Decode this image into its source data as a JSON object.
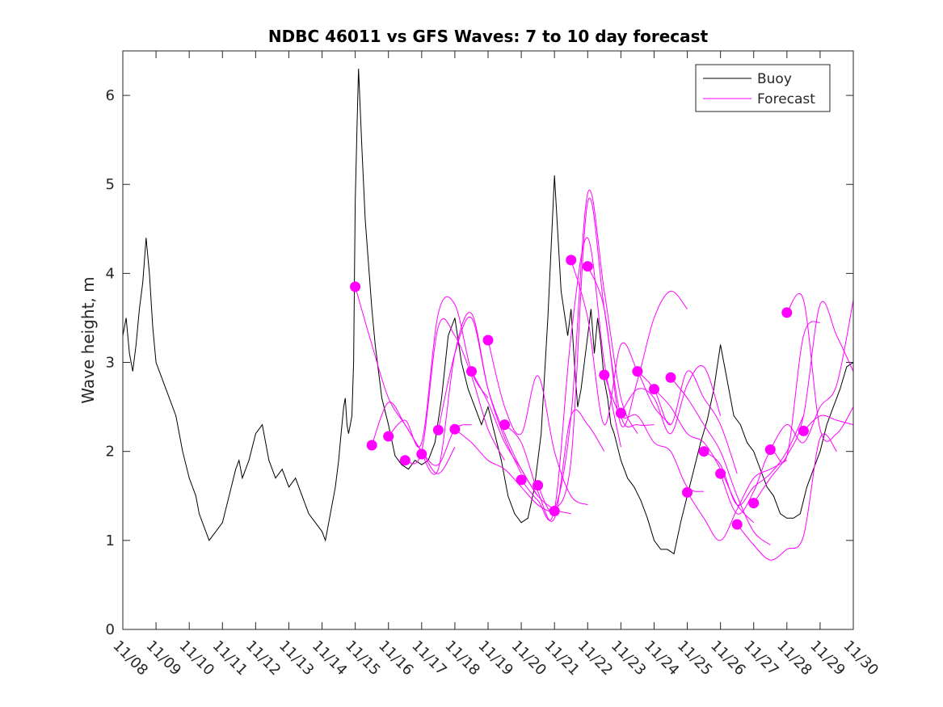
{
  "chart_data": {
    "type": "line",
    "title": "NDBC 46011 vs GFS Waves: 7 to 10 day forecast",
    "xlabel": "",
    "ylabel": "Wave height, m",
    "x_unit": "days since 11/08",
    "xlim": [
      0,
      22
    ],
    "ylim": [
      0,
      6.5
    ],
    "x_ticks": [
      0,
      1,
      2,
      3,
      4,
      5,
      6,
      7,
      8,
      9,
      10,
      11,
      12,
      13,
      14,
      15,
      16,
      17,
      18,
      19,
      20,
      21,
      22
    ],
    "x_tick_labels": [
      "11/08",
      "11/09",
      "11/10",
      "11/11",
      "11/12",
      "11/13",
      "11/14",
      "11/15",
      "11/16",
      "11/17",
      "11/18",
      "11/19",
      "11/20",
      "11/21",
      "11/22",
      "11/23",
      "11/24",
      "11/25",
      "11/26",
      "11/27",
      "11/28",
      "11/29",
      "11/30"
    ],
    "y_ticks": [
      0,
      1,
      2,
      3,
      4,
      5,
      6
    ],
    "y_tick_labels": [
      "0",
      "1",
      "2",
      "3",
      "4",
      "5",
      "6"
    ],
    "colors": {
      "buoy": "#000000",
      "forecast": "#ff00ff",
      "axes": "#262626"
    },
    "legend": {
      "position": "top-right",
      "entries": [
        {
          "label": "Buoy",
          "color": "#000000"
        },
        {
          "label": "Forecast",
          "color": "#ff00ff"
        }
      ]
    },
    "series": [
      {
        "name": "Buoy",
        "color": "#000000",
        "x": [
          0,
          0.1,
          0.2,
          0.3,
          0.4,
          0.5,
          0.6,
          0.7,
          0.8,
          0.9,
          1.0,
          1.2,
          1.4,
          1.6,
          1.8,
          2.0,
          2.1,
          2.2,
          2.3,
          2.4,
          2.5,
          2.6,
          2.8,
          3.0,
          3.2,
          3.4,
          3.5,
          3.6,
          3.8,
          4.0,
          4.2,
          4.4,
          4.6,
          4.8,
          5.0,
          5.2,
          5.4,
          5.6,
          5.8,
          6.0,
          6.1,
          6.2,
          6.3,
          6.4,
          6.5,
          6.55,
          6.6,
          6.65,
          6.7,
          6.75,
          6.8,
          6.85,
          6.9,
          6.95,
          7.0,
          7.05,
          7.1,
          7.2,
          7.3,
          7.4,
          7.5,
          7.6,
          7.7,
          7.8,
          8.0,
          8.2,
          8.4,
          8.6,
          8.8,
          9.0,
          9.2,
          9.4,
          9.6,
          9.8,
          10.0,
          10.2,
          10.4,
          10.6,
          10.8,
          11.0,
          11.2,
          11.4,
          11.6,
          11.8,
          12.0,
          12.2,
          12.4,
          12.6,
          12.8,
          13.0,
          13.2,
          13.4,
          13.5,
          13.6,
          13.7,
          13.8,
          13.9,
          14.0,
          14.1,
          14.2,
          14.3,
          14.4,
          14.5,
          14.6,
          14.7,
          14.8,
          15.0,
          15.2,
          15.4,
          15.6,
          15.8,
          16.0,
          16.2,
          16.4,
          16.6,
          16.8,
          17.0,
          17.2,
          17.4,
          17.6,
          17.8,
          18.0,
          18.2,
          18.4,
          18.6,
          18.8,
          19.0,
          19.2,
          19.4,
          19.6,
          19.8,
          20.0,
          20.2,
          20.4,
          20.6,
          20.8,
          21.0,
          21.2,
          21.4,
          21.6,
          21.8,
          22.0
        ],
        "y": [
          3.3,
          3.5,
          3.1,
          2.9,
          3.2,
          3.6,
          3.9,
          4.4,
          4.0,
          3.4,
          3.0,
          2.8,
          2.6,
          2.4,
          2.0,
          1.7,
          1.6,
          1.5,
          1.3,
          1.2,
          1.1,
          1.0,
          1.1,
          1.2,
          1.5,
          1.8,
          1.9,
          1.7,
          1.9,
          2.2,
          2.3,
          1.9,
          1.7,
          1.8,
          1.6,
          1.7,
          1.5,
          1.3,
          1.2,
          1.1,
          1.0,
          1.2,
          1.4,
          1.6,
          1.9,
          2.1,
          2.3,
          2.5,
          2.6,
          2.3,
          2.2,
          2.3,
          2.4,
          3.0,
          4.8,
          5.6,
          6.3,
          5.4,
          4.6,
          4.1,
          3.6,
          3.2,
          2.9,
          2.6,
          2.3,
          1.95,
          1.85,
          1.8,
          1.9,
          1.85,
          1.9,
          2.1,
          2.6,
          3.3,
          3.5,
          3.0,
          2.7,
          2.5,
          2.3,
          2.5,
          2.2,
          1.9,
          1.5,
          1.3,
          1.2,
          1.25,
          1.6,
          2.2,
          3.5,
          5.1,
          3.8,
          3.3,
          3.6,
          3.0,
          2.5,
          2.7,
          3.0,
          3.3,
          3.6,
          3.1,
          3.5,
          3.2,
          2.8,
          2.6,
          2.3,
          2.2,
          1.9,
          1.7,
          1.6,
          1.45,
          1.25,
          1.0,
          0.9,
          0.9,
          0.85,
          1.2,
          1.5,
          1.8,
          2.1,
          2.35,
          2.7,
          3.2,
          2.8,
          2.4,
          2.3,
          2.1,
          2.0,
          1.8,
          1.6,
          1.5,
          1.3,
          1.25,
          1.25,
          1.3,
          1.6,
          1.8,
          2.0,
          2.3,
          2.5,
          2.7,
          2.95,
          3.0
        ]
      },
      {
        "name": "Forecast",
        "color": "#ff00ff",
        "runs": [
          {
            "x": [
              7.0,
              7.5,
              8.0,
              8.5,
              9.0,
              9.5,
              10.0
            ],
            "y": [
              3.85,
              3.2,
              2.6,
              2.3,
              2.0,
              1.75,
              2.05
            ]
          },
          {
            "x": [
              7.5,
              8.0,
              8.5,
              9.0,
              9.5,
              10.0,
              10.5
            ],
            "y": [
              2.07,
              2.55,
              2.3,
              2.0,
              1.85,
              2.25,
              2.3
            ]
          },
          {
            "x": [
              8.0,
              8.5,
              9.0,
              9.5,
              10.0,
              10.5,
              11.0
            ],
            "y": [
              2.17,
              2.35,
              2.1,
              3.55,
              3.65,
              2.9,
              2.6
            ]
          },
          {
            "x": [
              8.5,
              9.0,
              9.5,
              10.0,
              10.5,
              11.0,
              11.5
            ],
            "y": [
              1.9,
              2.0,
              3.4,
              3.3,
              2.85,
              2.25,
              1.9
            ]
          },
          {
            "x": [
              9.0,
              9.5,
              10.0,
              10.5,
              11.0,
              11.5,
              12.0
            ],
            "y": [
              1.97,
              1.8,
              3.1,
              3.55,
              2.7,
              2.15,
              1.75
            ]
          },
          {
            "x": [
              9.5,
              10.0,
              10.5,
              11.0,
              11.5,
              12.0,
              12.5
            ],
            "y": [
              2.24,
              3.1,
              3.5,
              2.7,
              2.2,
              1.8,
              1.5
            ]
          },
          {
            "x": [
              10.0,
              10.5,
              11.0,
              11.5,
              12.0,
              12.5,
              13.0
            ],
            "y": [
              2.25,
              2.1,
              1.9,
              1.8,
              1.6,
              1.4,
              1.3
            ]
          },
          {
            "x": [
              10.5,
              11.0,
              11.5,
              12.0,
              12.5,
              13.0,
              13.5
            ],
            "y": [
              2.9,
              2.55,
              2.1,
              1.8,
              1.5,
              1.35,
              1.3
            ]
          },
          {
            "x": [
              11.0,
              11.5,
              12.0,
              12.5,
              13.0,
              13.5,
              14.0
            ],
            "y": [
              3.25,
              2.5,
              2.2,
              2.85,
              2.0,
              1.5,
              1.4
            ]
          },
          {
            "x": [
              11.5,
              12.0,
              12.5,
              13.0,
              13.5,
              14.0,
              14.5
            ],
            "y": [
              2.3,
              2.1,
              1.55,
              1.25,
              2.4,
              2.3,
              2.0
            ]
          },
          {
            "x": [
              12.0,
              12.5,
              13.0,
              13.5,
              14.0,
              14.5,
              15.0
            ],
            "y": [
              1.68,
              1.45,
              1.35,
              3.3,
              4.4,
              3.0,
              2.05
            ]
          },
          {
            "x": [
              12.5,
              13.0,
              13.5,
              14.0,
              14.5,
              15.0,
              15.5
            ],
            "y": [
              1.62,
              1.35,
              2.4,
              4.9,
              3.8,
              2.6,
              2.2
            ]
          },
          {
            "x": [
              13.0,
              13.5,
              14.0,
              14.5,
              15.0,
              15.5,
              16.0
            ],
            "y": [
              1.33,
              1.9,
              4.8,
              3.6,
              2.4,
              2.3,
              2.3
            ]
          },
          {
            "x": [
              13.5,
              14.0,
              14.5,
              15.0,
              15.5,
              16.0,
              16.5
            ],
            "y": [
              4.15,
              3.5,
              2.3,
              3.2,
              2.9,
              2.5,
              2.3
            ]
          },
          {
            "x": [
              14.0,
              14.5,
              15.0,
              15.5,
              16.0,
              16.5,
              17.0
            ],
            "y": [
              4.08,
              3.6,
              2.3,
              2.8,
              3.5,
              3.8,
              3.6
            ]
          },
          {
            "x": [
              14.5,
              15.0,
              15.5,
              16.0,
              16.5,
              17.0,
              17.5
            ],
            "y": [
              2.86,
              2.4,
              2.4,
              2.1,
              2.0,
              1.6,
              1.55
            ]
          },
          {
            "x": [
              15.0,
              15.5,
              16.0,
              16.5,
              17.0,
              17.5,
              18.0
            ],
            "y": [
              2.43,
              2.7,
              2.6,
              2.2,
              2.75,
              2.95,
              2.4
            ]
          },
          {
            "x": [
              15.5,
              16.0,
              16.5,
              17.0,
              17.5,
              18.0,
              18.5
            ],
            "y": [
              2.9,
              2.7,
              2.3,
              2.9,
              2.6,
              2.3,
              1.75
            ]
          },
          {
            "x": [
              16.0,
              16.5,
              17.0,
              17.5,
              18.0,
              18.5,
              19.0
            ],
            "y": [
              2.7,
              2.5,
              2.2,
              2.1,
              1.8,
              1.4,
              1.2
            ]
          },
          {
            "x": [
              16.5,
              17.0,
              17.5,
              18.0,
              18.5,
              19.0,
              19.5
            ],
            "y": [
              2.83,
              2.6,
              2.3,
              2.0,
              1.5,
              1.1,
              0.95
            ]
          },
          {
            "x": [
              17.0,
              17.5,
              18.0,
              18.5,
              19.0,
              19.5,
              20.0
            ],
            "y": [
              1.54,
              1.25,
              1.0,
              1.35,
              1.7,
              1.8,
              1.9
            ]
          },
          {
            "x": [
              17.5,
              18.0,
              18.5,
              19.0,
              19.5,
              20.0,
              20.5
            ],
            "y": [
              2.0,
              1.85,
              1.4,
              1.6,
              1.75,
              2.0,
              2.4
            ]
          },
          {
            "x": [
              18.0,
              18.5,
              19.0,
              19.5,
              20.0,
              20.5,
              21.0
            ],
            "y": [
              1.75,
              1.3,
              1.55,
              2.0,
              1.95,
              3.3,
              3.45
            ]
          },
          {
            "x": [
              18.5,
              19.0,
              19.5,
              20.0,
              20.5,
              21.0,
              21.5
            ],
            "y": [
              1.18,
              0.95,
              0.78,
              0.9,
              1.05,
              2.15,
              2.0
            ]
          },
          {
            "x": [
              19.0,
              19.5,
              20.0,
              20.5,
              21.0,
              21.5,
              22.0
            ],
            "y": [
              1.42,
              1.7,
              1.95,
              2.4,
              3.65,
              3.3,
              2.9
            ]
          },
          {
            "x": [
              19.5,
              20.0,
              20.5,
              21.0,
              21.5,
              22.0
            ],
            "y": [
              2.02,
              2.3,
              2.1,
              2.5,
              2.75,
              3.7
            ]
          },
          {
            "x": [
              20.0,
              20.5,
              21.0,
              21.5,
              22.0
            ],
            "y": [
              3.56,
              3.7,
              2.25,
              2.2,
              2.5
            ]
          },
          {
            "x": [
              20.5,
              21.0,
              21.5,
              22.0
            ],
            "y": [
              2.23,
              2.4,
              2.35,
              2.3
            ]
          }
        ]
      }
    ]
  }
}
